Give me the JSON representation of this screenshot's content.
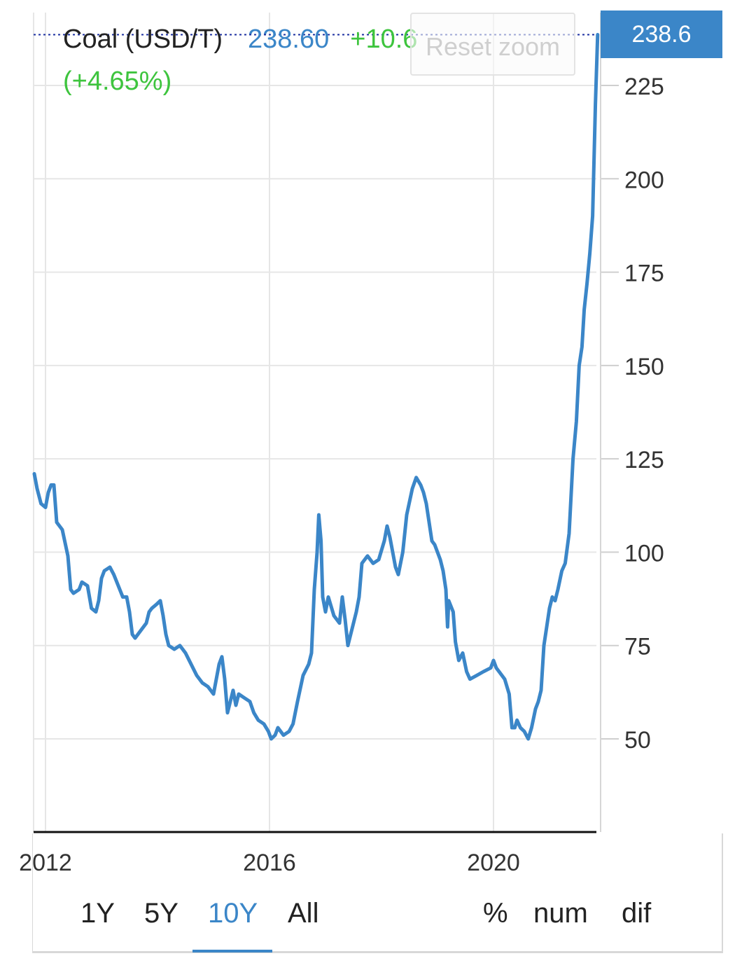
{
  "legend": {
    "name": "Coal (USD/T)",
    "price": "238.60",
    "change": "+10.6",
    "change_pct": "(+4.65%)"
  },
  "reset_zoom_label": "Reset zoom",
  "last_price_label": "238.6",
  "range_buttons": {
    "y1": "1Y",
    "y5": "5Y",
    "y10": "10Y",
    "all": "All"
  },
  "mode_buttons": {
    "pct": "%",
    "num": "num",
    "dif": "dif"
  },
  "active_range": "10Y",
  "colors": {
    "line": "#3b86c8",
    "positive": "#3ec43e",
    "grid": "#e6e6e6"
  },
  "chart_data": {
    "type": "line",
    "title": "",
    "series_name": "Coal (USD/T)",
    "xlabel": "",
    "ylabel": "",
    "x_ticks": [
      "2012",
      "2016",
      "2020"
    ],
    "y_ticks": [
      50,
      75,
      100,
      125,
      150,
      175,
      200,
      225
    ],
    "ylim": [
      25,
      246
    ],
    "xlim": [
      2011.8,
      2022.0
    ],
    "last_value": 238.6,
    "grid": true,
    "points": [
      [
        2011.8,
        121
      ],
      [
        2011.85,
        117
      ],
      [
        2011.92,
        113
      ],
      [
        2012.0,
        112
      ],
      [
        2012.05,
        116
      ],
      [
        2012.1,
        118
      ],
      [
        2012.15,
        118
      ],
      [
        2012.2,
        108
      ],
      [
        2012.3,
        106
      ],
      [
        2012.4,
        99
      ],
      [
        2012.45,
        90
      ],
      [
        2012.5,
        89
      ],
      [
        2012.6,
        90
      ],
      [
        2012.65,
        92
      ],
      [
        2012.75,
        91
      ],
      [
        2012.82,
        85
      ],
      [
        2012.9,
        84
      ],
      [
        2012.95,
        87
      ],
      [
        2013.0,
        93
      ],
      [
        2013.05,
        95
      ],
      [
        2013.15,
        96
      ],
      [
        2013.22,
        94
      ],
      [
        2013.3,
        91
      ],
      [
        2013.38,
        88
      ],
      [
        2013.45,
        88
      ],
      [
        2013.5,
        84
      ],
      [
        2013.55,
        78
      ],
      [
        2013.6,
        77
      ],
      [
        2013.7,
        79
      ],
      [
        2013.8,
        81
      ],
      [
        2013.85,
        84
      ],
      [
        2013.9,
        85
      ],
      [
        2013.98,
        86
      ],
      [
        2014.05,
        87
      ],
      [
        2014.1,
        83
      ],
      [
        2014.15,
        78
      ],
      [
        2014.2,
        75
      ],
      [
        2014.3,
        74
      ],
      [
        2014.4,
        75
      ],
      [
        2014.5,
        73
      ],
      [
        2014.6,
        70
      ],
      [
        2014.7,
        67
      ],
      [
        2014.8,
        65
      ],
      [
        2014.9,
        64
      ],
      [
        2015.0,
        62
      ],
      [
        2015.05,
        66
      ],
      [
        2015.1,
        70
      ],
      [
        2015.15,
        72
      ],
      [
        2015.2,
        66
      ],
      [
        2015.25,
        57
      ],
      [
        2015.3,
        60
      ],
      [
        2015.35,
        63
      ],
      [
        2015.4,
        59
      ],
      [
        2015.45,
        62
      ],
      [
        2015.55,
        61
      ],
      [
        2015.65,
        60
      ],
      [
        2015.72,
        57
      ],
      [
        2015.8,
        55
      ],
      [
        2015.9,
        54
      ],
      [
        2015.98,
        52
      ],
      [
        2016.03,
        50
      ],
      [
        2016.1,
        51
      ],
      [
        2016.15,
        53
      ],
      [
        2016.25,
        51
      ],
      [
        2016.35,
        52
      ],
      [
        2016.42,
        54
      ],
      [
        2016.5,
        60
      ],
      [
        2016.6,
        67
      ],
      [
        2016.7,
        70
      ],
      [
        2016.75,
        73
      ],
      [
        2016.8,
        90
      ],
      [
        2016.85,
        100
      ],
      [
        2016.88,
        110
      ],
      [
        2016.92,
        103
      ],
      [
        2016.95,
        88
      ],
      [
        2017.0,
        84
      ],
      [
        2017.05,
        88
      ],
      [
        2017.15,
        83
      ],
      [
        2017.25,
        81
      ],
      [
        2017.3,
        88
      ],
      [
        2017.35,
        82
      ],
      [
        2017.4,
        75
      ],
      [
        2017.45,
        78
      ],
      [
        2017.55,
        84
      ],
      [
        2017.6,
        88
      ],
      [
        2017.65,
        97
      ],
      [
        2017.75,
        99
      ],
      [
        2017.85,
        97
      ],
      [
        2017.95,
        98
      ],
      [
        2018.05,
        103
      ],
      [
        2018.1,
        107
      ],
      [
        2018.15,
        104
      ],
      [
        2018.2,
        100
      ],
      [
        2018.25,
        96
      ],
      [
        2018.3,
        94
      ],
      [
        2018.38,
        100
      ],
      [
        2018.45,
        110
      ],
      [
        2018.55,
        117
      ],
      [
        2018.62,
        120
      ],
      [
        2018.7,
        118
      ],
      [
        2018.75,
        116
      ],
      [
        2018.8,
        113
      ],
      [
        2018.85,
        108
      ],
      [
        2018.9,
        103
      ],
      [
        2018.95,
        102
      ],
      [
        2019.05,
        98
      ],
      [
        2019.1,
        95
      ],
      [
        2019.15,
        90
      ],
      [
        2019.18,
        80
      ],
      [
        2019.2,
        87
      ],
      [
        2019.28,
        84
      ],
      [
        2019.32,
        76
      ],
      [
        2019.38,
        71
      ],
      [
        2019.45,
        73
      ],
      [
        2019.52,
        68
      ],
      [
        2019.58,
        66
      ],
      [
        2019.7,
        67
      ],
      [
        2019.82,
        68
      ],
      [
        2019.95,
        69
      ],
      [
        2020.0,
        71
      ],
      [
        2020.05,
        69
      ],
      [
        2020.1,
        68
      ],
      [
        2020.2,
        66
      ],
      [
        2020.28,
        62
      ],
      [
        2020.33,
        53
      ],
      [
        2020.38,
        53
      ],
      [
        2020.42,
        55
      ],
      [
        2020.48,
        53
      ],
      [
        2020.55,
        52
      ],
      [
        2020.62,
        50
      ],
      [
        2020.68,
        53
      ],
      [
        2020.75,
        58
      ],
      [
        2020.8,
        60
      ],
      [
        2020.85,
        63
      ],
      [
        2020.9,
        75
      ],
      [
        2020.95,
        80
      ],
      [
        2021.0,
        85
      ],
      [
        2021.05,
        88
      ],
      [
        2021.1,
        87
      ],
      [
        2021.15,
        90
      ],
      [
        2021.22,
        95
      ],
      [
        2021.28,
        97
      ],
      [
        2021.35,
        105
      ],
      [
        2021.42,
        125
      ],
      [
        2021.48,
        135
      ],
      [
        2021.53,
        150
      ],
      [
        2021.58,
        155
      ],
      [
        2021.62,
        165
      ],
      [
        2021.67,
        172
      ],
      [
        2021.72,
        180
      ],
      [
        2021.77,
        190
      ],
      [
        2021.82,
        220
      ],
      [
        2021.86,
        238.6
      ]
    ]
  }
}
